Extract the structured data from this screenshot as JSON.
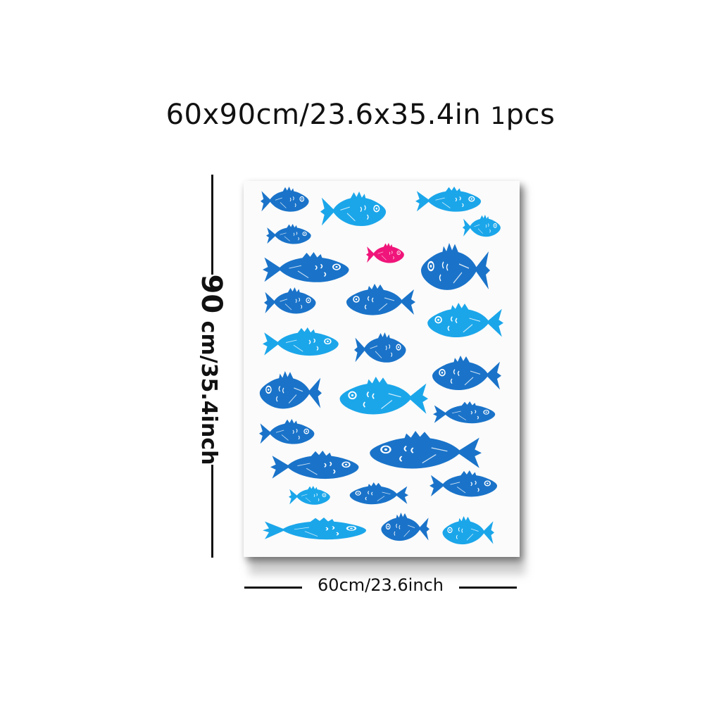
{
  "header": {
    "size_text": "60x90cm/23.6x35.4in",
    "pcs_num": "1",
    "pcs_text": "pcs"
  },
  "dimensions": {
    "height_big": "90",
    "height_rest": "cm/35.4inch",
    "width_text": "60cm/23.6inch"
  },
  "colors": {
    "dark_blue": "#1a73c9",
    "light_blue": "#1ba6ea",
    "pink": "#f0157a",
    "paper": "#fbfbfb"
  },
  "fish_icons": [
    "fish-icon",
    "fish-icon",
    "fish-icon",
    "fish-icon",
    "fish-icon",
    "fish-icon",
    "fish-icon",
    "fish-icon",
    "fish-icon",
    "fish-icon",
    "fish-icon",
    "fish-icon",
    "fish-icon",
    "fish-icon",
    "fish-icon",
    "fish-icon",
    "fish-icon",
    "fish-icon",
    "fish-icon",
    "fish-icon",
    "fish-icon",
    "fish-icon",
    "fish-icon",
    "fish-icon",
    "fish-icon",
    "fish-icon"
  ]
}
